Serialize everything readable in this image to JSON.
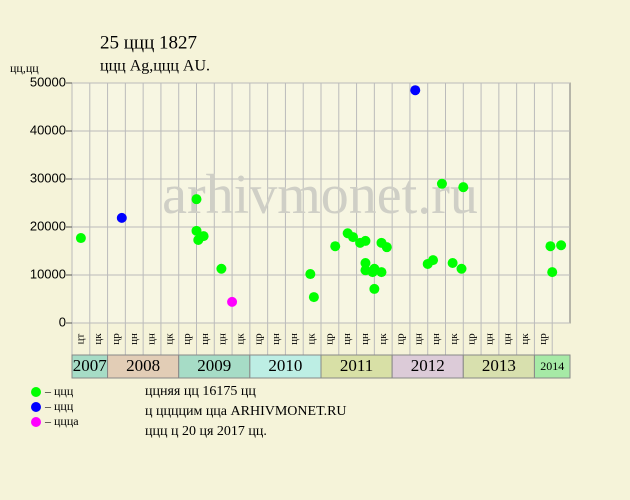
{
  "chart_data": {
    "type": "scatter",
    "title": "25 ццц 1827",
    "subtitle": "ццц Ag,ццц AU.",
    "y_label": "цц,цц",
    "watermark": "arhivmonet.ru",
    "ylim": [
      0,
      50000
    ],
    "yticks": [
      0,
      10000,
      20000,
      30000,
      40000,
      50000
    ],
    "xlim": [
      0,
      28
    ],
    "grid": true,
    "years": [
      {
        "name": "2007",
        "color": "#a6dcc6",
        "columns": [
          "цт",
          "цк"
        ]
      },
      {
        "name": "2008",
        "color": "#e2cdb6",
        "columns": [
          "цр",
          "цн",
          "цн",
          "цк"
        ]
      },
      {
        "name": "2009",
        "color": "#a6dcc6",
        "columns": [
          "цр",
          "цн",
          "цн",
          "цк"
        ]
      },
      {
        "name": "2010",
        "color": "#bdeee4",
        "columns": [
          "цр",
          "цн",
          "цн",
          "цк"
        ]
      },
      {
        "name": "2011",
        "color": "#d8e0a6",
        "columns": [
          "цр",
          "цн",
          "цн",
          "цк"
        ]
      },
      {
        "name": "2012",
        "color": "#dccbd8",
        "columns": [
          "цр",
          "цн",
          "цн",
          "цк"
        ]
      },
      {
        "name": "2013",
        "color": "#d8e0ae",
        "columns": [
          "цр",
          "цн",
          "цн",
          "цк"
        ]
      },
      {
        "name": "2014",
        "color": "#a6eaa6",
        "columns": [
          "цр",
          null
        ]
      }
    ],
    "series": [
      {
        "name": "– ццц",
        "color": "#00ff00",
        "x": [
          0.5,
          7.0,
          7.0,
          7.1,
          7.4,
          8.4,
          13.4,
          13.6,
          14.8,
          15.5,
          15.8,
          16.2,
          16.5,
          16.5,
          16.5,
          16.9,
          17.0,
          17.0,
          17.4,
          17.4,
          17.7,
          20.0,
          20.3,
          20.8,
          21.4,
          21.9,
          22.0,
          26.9,
          27.0,
          27.5
        ],
        "values": [
          17700,
          25800,
          19200,
          17300,
          18100,
          11300,
          10200,
          5400,
          16000,
          18700,
          17900,
          16700,
          17100,
          12500,
          11000,
          10600,
          11300,
          7100,
          10600,
          16700,
          15800,
          12300,
          13100,
          29000,
          12500,
          11300,
          28300,
          16000,
          10600,
          16200
        ]
      },
      {
        "name": "– ццц",
        "color": "#0000ff",
        "x": [
          2.8,
          19.3
        ],
        "values": [
          21900,
          48500
        ]
      },
      {
        "name": "– ццца",
        "color": "#ff00ff",
        "x": [
          9.0
        ],
        "values": [
          4400
        ]
      }
    ],
    "notes": [
      "ццняя цц 16175 цц",
      "ц ццццим цца ARHIVMONET.RU",
      "ццц ц 20 ця 2017 цц."
    ]
  }
}
